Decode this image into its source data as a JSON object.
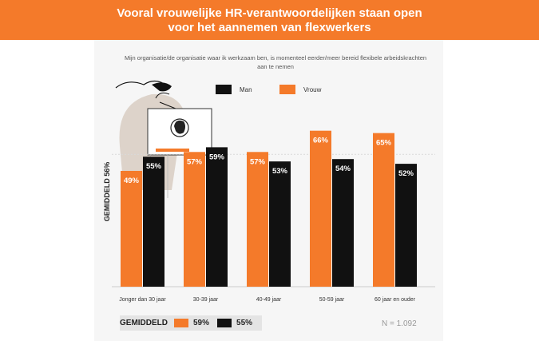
{
  "header": {
    "title": "Vooral vrouwelijke HR-verantwoordelijken staan open\nvoor het aannemen van flexwerkers"
  },
  "subtitle": "Mijn organisatie/de organisatie waar ik werkzaam ben, is momenteel eerder/meer bereid flexibele arbeidskrachten aan te nemen",
  "legend": [
    {
      "label": "Man",
      "color": "#111111"
    },
    {
      "label": "Vrouw",
      "color": "#f47a2a"
    }
  ],
  "avg_box": {
    "label": "GEMIDDELD",
    "vrouw_value": "59%",
    "man_value": "55%"
  },
  "sample_size": "N = 1.092",
  "decor_icon": "person-with-laptop-illustration",
  "chart_data": {
    "type": "bar",
    "categories": [
      "Jonger dan 30 jaar",
      "30-39 jaar",
      "40-49 jaar",
      "50-59 jaar",
      "60 jaar en ouder"
    ],
    "series": [
      {
        "name": "Vrouw",
        "color": "#f47a2a",
        "values": [
          49,
          57,
          57,
          66,
          65
        ],
        "labels": [
          "49%",
          "57%",
          "57%",
          "66%",
          "65%"
        ]
      },
      {
        "name": "Man",
        "color": "#111111",
        "values": [
          55,
          59,
          53,
          54,
          52
        ],
        "labels": [
          "55%",
          "59%",
          "53%",
          "54%",
          "52%"
        ]
      }
    ],
    "ylabel": "GEMIDDELD 56%",
    "reference_line": 56,
    "ylim": [
      0,
      74
    ]
  }
}
